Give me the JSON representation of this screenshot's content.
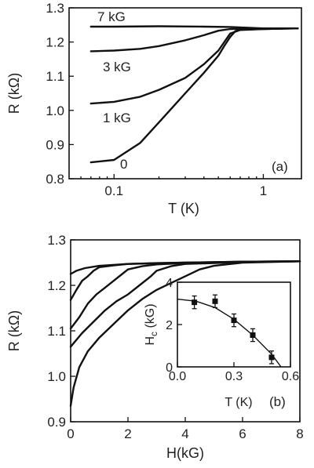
{
  "chart_data": [
    {
      "type": "line",
      "panel_label": "(a)",
      "xlabel": "T (K)",
      "ylabel": "R (kΩ)",
      "xscale": "log",
      "xlim": [
        0.05,
        1.8
      ],
      "ylim": [
        0.8,
        1.3
      ],
      "xticks": [
        0.1,
        1
      ],
      "xticklabels": [
        "0.1",
        "1"
      ],
      "yticks": [
        0.8,
        0.9,
        1.0,
        1.1,
        1.2,
        1.3
      ],
      "yticklabels": [
        "0.8",
        "0.9",
        "1.0",
        "1.1",
        "1.2",
        "1.3"
      ],
      "grid": false,
      "series": [
        {
          "name": "7 kG",
          "x": [
            0.07,
            0.1,
            0.2,
            0.4,
            0.6,
            1.0,
            1.7
          ],
          "y": [
            1.245,
            1.245,
            1.246,
            1.245,
            1.244,
            1.24,
            1.24
          ]
        },
        {
          "name": "3 kG",
          "x": [
            0.07,
            0.1,
            0.15,
            0.2,
            0.3,
            0.4,
            0.5,
            0.6,
            1.0,
            1.7
          ],
          "y": [
            1.173,
            1.175,
            1.18,
            1.188,
            1.205,
            1.22,
            1.233,
            1.238,
            1.24,
            1.24
          ]
        },
        {
          "name": "1 kG",
          "x": [
            0.07,
            0.1,
            0.15,
            0.2,
            0.3,
            0.4,
            0.5,
            0.6,
            0.7,
            1.0,
            1.7
          ],
          "y": [
            1.02,
            1.025,
            1.04,
            1.06,
            1.095,
            1.135,
            1.175,
            1.225,
            1.235,
            1.238,
            1.24
          ]
        },
        {
          "name": "0",
          "x": [
            0.07,
            0.1,
            0.15,
            0.2,
            0.3,
            0.4,
            0.5,
            0.55,
            0.6,
            0.65,
            0.7,
            1.0,
            1.7
          ],
          "y": [
            0.848,
            0.855,
            0.905,
            0.965,
            1.05,
            1.11,
            1.16,
            1.19,
            1.215,
            1.232,
            1.236,
            1.238,
            1.24
          ]
        }
      ]
    },
    {
      "type": "line",
      "panel_label": "(b)",
      "xlabel": "H(kG)",
      "ylabel": "R (kΩ)",
      "xlim": [
        0,
        8
      ],
      "ylim": [
        0.9,
        1.3
      ],
      "xticks": [
        0,
        2,
        4,
        6,
        8
      ],
      "xticklabels": [
        "0",
        "2",
        "4",
        "6",
        "8"
      ],
      "yticks": [
        0.9,
        1.0,
        1.1,
        1.2,
        1.3
      ],
      "yticklabels": [
        "0.9",
        "1.0",
        "1.1",
        "1.2",
        "1.3"
      ],
      "grid": false,
      "series": [
        {
          "x": [
            0,
            0.2,
            0.5,
            1,
            2,
            4,
            6,
            8
          ],
          "y": [
            1.225,
            1.232,
            1.238,
            1.243,
            1.247,
            1.25,
            1.252,
            1.253
          ]
        },
        {
          "x": [
            0,
            0.2,
            0.4,
            0.6,
            0.8,
            1.0,
            1.5,
            2,
            3,
            4,
            6,
            8
          ],
          "y": [
            1.168,
            1.19,
            1.21,
            1.22,
            1.232,
            1.24,
            1.244,
            1.247,
            1.249,
            1.25,
            1.252,
            1.253
          ]
        },
        {
          "x": [
            0,
            0.3,
            0.6,
            0.9,
            1.2,
            1.5,
            1.8,
            2.0,
            2.5,
            3,
            4,
            6,
            8
          ],
          "y": [
            1.105,
            1.13,
            1.16,
            1.18,
            1.195,
            1.21,
            1.225,
            1.235,
            1.242,
            1.246,
            1.249,
            1.252,
            1.253
          ]
        },
        {
          "x": [
            0,
            0.4,
            0.8,
            1.2,
            1.6,
            2.0,
            2.4,
            2.8,
            3.0,
            3.5,
            4,
            6,
            8
          ],
          "y": [
            1.065,
            1.095,
            1.12,
            1.145,
            1.165,
            1.18,
            1.2,
            1.22,
            1.232,
            1.242,
            1.247,
            1.251,
            1.253
          ]
        },
        {
          "x": [
            0,
            0.1,
            0.3,
            0.6,
            1.0,
            1.5,
            2.0,
            2.5,
            3.0,
            3.5,
            4.0,
            4.5,
            5.0,
            6,
            8
          ],
          "y": [
            0.935,
            0.975,
            1.02,
            1.055,
            1.085,
            1.115,
            1.145,
            1.17,
            1.19,
            1.205,
            1.22,
            1.235,
            1.243,
            1.25,
            1.253
          ]
        }
      ]
    },
    {
      "type": "scatter",
      "inset_of": "(b)",
      "xlabel": "T (K)",
      "ylabel": "Hc (kG)",
      "ylabel_main": "H",
      "ylabel_sub": "c",
      "ylabel_rest": " (kG)",
      "xlim": [
        0,
        0.6
      ],
      "ylim": [
        0,
        4
      ],
      "xticks": [
        0,
        0.3,
        0.6
      ],
      "xticklabels": [
        "0.0",
        "0.3",
        "0.6"
      ],
      "yticks": [
        0,
        2,
        4
      ],
      "yticklabels": [
        "0",
        "2",
        "4"
      ],
      "series": [
        {
          "x": [
            0.09,
            0.2,
            0.3,
            0.4,
            0.5
          ],
          "y": [
            3.05,
            3.1,
            2.2,
            1.5,
            0.45
          ],
          "yerr": [
            0.3,
            0.3,
            0.3,
            0.3,
            0.3
          ]
        }
      ],
      "fit": {
        "x": [
          0,
          0.1,
          0.2,
          0.3,
          0.4,
          0.5,
          0.55
        ],
        "y": [
          3.2,
          3.1,
          2.8,
          2.25,
          1.5,
          0.6,
          0.0
        ]
      }
    }
  ],
  "labels": {
    "curve_7kG": "7 kG",
    "curve_3kG": "3 kG",
    "curve_1kG": "1 kG",
    "curve_0": "0"
  }
}
